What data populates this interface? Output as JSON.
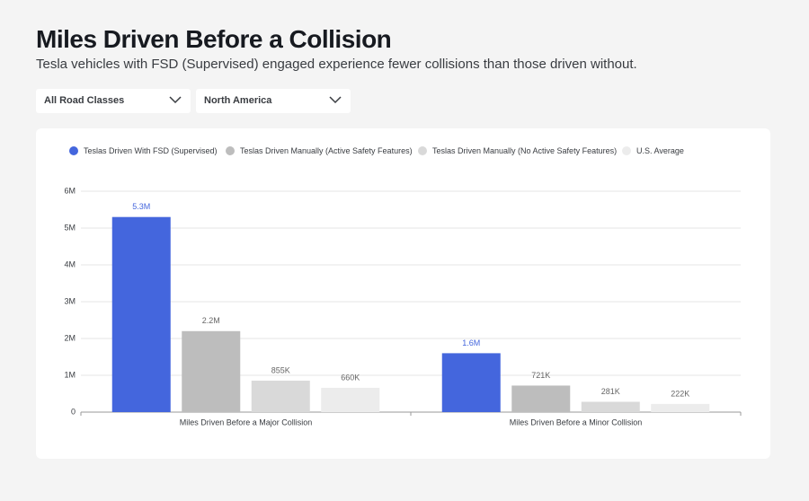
{
  "header": {
    "title": "Miles Driven Before a Collision",
    "subtitle": "Tesla vehicles with FSD (Supervised) engaged experience fewer collisions than those driven without."
  },
  "filters": [
    "All Road Classes",
    "North America"
  ],
  "chart_data": {
    "type": "bar",
    "categories": [
      "Miles Driven Before a Major Collision",
      "Miles Driven Before a Minor Collision"
    ],
    "series": [
      {
        "name": "Teslas Driven With FSD (Supervised)",
        "color": "#4466dd",
        "label_color": "#4466dd",
        "values": [
          5300000,
          1600000
        ],
        "value_labels": [
          "5.3M",
          "1.6M"
        ]
      },
      {
        "name": "Teslas Driven Manually (Active Safety Features)",
        "color": "#bdbdbd",
        "label_color": "#666666",
        "values": [
          2200000,
          721000
        ],
        "value_labels": [
          "2.2M",
          "721K"
        ]
      },
      {
        "name": "Teslas Driven Manually (No Active Safety Features)",
        "color": "#d9d9d9",
        "label_color": "#666666",
        "values": [
          855000,
          281000
        ],
        "value_labels": [
          "855K",
          "281K"
        ]
      },
      {
        "name": "U.S. Average",
        "color": "#ececec",
        "label_color": "#666666",
        "values": [
          660000,
          222000
        ],
        "value_labels": [
          "660K",
          "222K"
        ]
      }
    ],
    "ylim": [
      0,
      6000000
    ],
    "yticks": [
      0,
      {
        "value": 1000000,
        "label": "1M"
      },
      {
        "value": 2000000,
        "label": "2M"
      },
      {
        "value": 3000000,
        "label": "3M"
      },
      {
        "value": 4000000,
        "label": "4M"
      },
      {
        "value": 5000000,
        "label": "5M"
      },
      {
        "value": 6000000,
        "label": "6M"
      }
    ],
    "grid": true
  }
}
